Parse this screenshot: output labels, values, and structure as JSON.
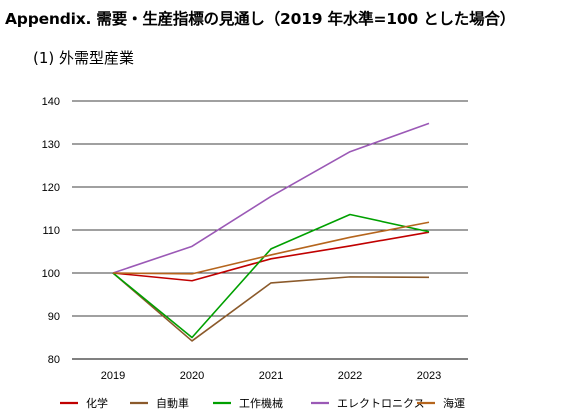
{
  "header": {
    "title": "Appendix. 需要・生産指標の見通し（2019 年水準=100 とした場合）",
    "section": "(1)  外需型産業"
  },
  "chart_data": {
    "type": "line",
    "x": [
      "2019",
      "2020",
      "2021",
      "2022",
      "2023"
    ],
    "ylim": [
      80,
      140
    ],
    "yticks": [
      80,
      90,
      100,
      110,
      120,
      130,
      140
    ],
    "grid": "horizontal",
    "legend_position": "bottom",
    "series": [
      {
        "name": "化学",
        "color": "#c00000",
        "values": [
          100,
          98.2,
          103.3,
          106.3,
          109.5
        ]
      },
      {
        "name": "自動車",
        "color": "#8b5a2b",
        "values": [
          100,
          84.2,
          97.7,
          99.1,
          99.0
        ]
      },
      {
        "name": "工作機械",
        "color": "#00a000",
        "values": [
          100,
          85.0,
          105.6,
          113.6,
          109.6
        ]
      },
      {
        "name": "エレクトロニクス",
        "color": "#9b59b6",
        "values": [
          100,
          106.2,
          117.8,
          128.2,
          134.8
        ]
      },
      {
        "name": "海運",
        "color": "#b5651d",
        "values": [
          100,
          99.8,
          104.2,
          108.3,
          111.8
        ]
      }
    ]
  }
}
